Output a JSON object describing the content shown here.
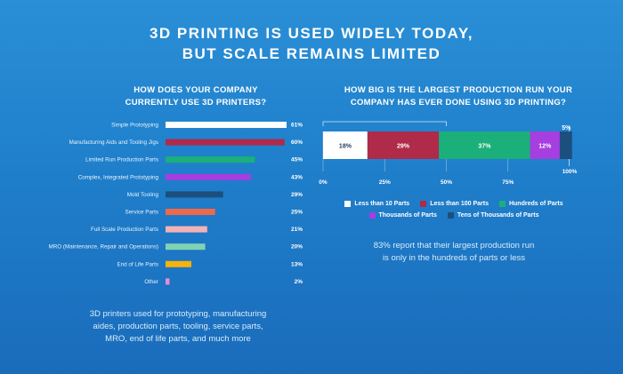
{
  "title_line1": "3D PRINTING IS USED WIDELY TODAY,",
  "title_line2": "BUT SCALE REMAINS LIMITED",
  "left": {
    "subtitle_line1": "HOW DOES YOUR COMPANY",
    "subtitle_line2": "CURRENTLY USE 3D PRINTERS?",
    "note_line1": "3D printers used for prototyping, manufacturing",
    "note_line2": "aides, production parts, tooling, service parts,",
    "note_line3": "MRO, end of life parts, and much more"
  },
  "right": {
    "subtitle_line1": "HOW BIG IS THE LARGEST PRODUCTION RUN YOUR",
    "subtitle_line2": "COMPANY HAS EVER DONE USING 3D PRINTING?",
    "note_line1": "83% report that their largest production run",
    "note_line2": "is only in the hundreds of parts or less"
  },
  "chart_data": [
    {
      "type": "bar",
      "orientation": "horizontal",
      "title": "HOW DOES YOUR COMPANY CURRENTLY USE 3D PRINTERS?",
      "categories": [
        "Simple Prototyping",
        "Manufacturing Aids and Tooling Jigs",
        "Limited Run Production Parts",
        "Complex, Integrated Prototyping",
        "Mold Tooling",
        "Service Parts",
        "Full Scale Production Parts",
        "MRO (Maintenance, Repair and Operations)",
        "End of Life Parts",
        "Other"
      ],
      "values": [
        61,
        60,
        45,
        43,
        29,
        25,
        21,
        20,
        13,
        2
      ],
      "value_labels": [
        "61%",
        "60%",
        "45%",
        "43%",
        "29%",
        "25%",
        "21%",
        "20%",
        "13%",
        "2%"
      ],
      "colors": [
        "#ffffff",
        "#b02a4a",
        "#1bb07a",
        "#a63ee0",
        "#1d4f7e",
        "#f0684a",
        "#f4b2b6",
        "#7fd3b4",
        "#f7b20c",
        "#e48fd0"
      ],
      "xlim": [
        0,
        61
      ]
    },
    {
      "type": "bar",
      "orientation": "horizontal-stacked",
      "title": "HOW BIG IS THE LARGEST PRODUCTION RUN YOUR COMPANY HAS EVER DONE USING 3D PRINTING?",
      "series": [
        {
          "name": "Less than 10 Parts",
          "value": 18,
          "label": "18%",
          "color": "#ffffff",
          "label_color": "#1f3b5a"
        },
        {
          "name": "Less than 100 Parts",
          "value": 29,
          "label": "29%",
          "color": "#b02a4a",
          "label_color": "#ffffff"
        },
        {
          "name": "Hundreds of Parts",
          "value": 37,
          "label": "37%",
          "color": "#1bb07a",
          "label_color": "#ffffff"
        },
        {
          "name": "Thousands of Parts",
          "value": 12,
          "label": "12%",
          "color": "#a63ee0",
          "label_color": "#ffffff"
        },
        {
          "name": "Tens of Thousands of Parts",
          "value": 5,
          "label": "5%",
          "color": "#1d4f7e",
          "label_color": "#ffffff"
        }
      ],
      "x_ticks": [
        "0%",
        "25%",
        "50%",
        "75%",
        "100%"
      ],
      "xlim": [
        0,
        100
      ],
      "legend": "bottom"
    }
  ]
}
